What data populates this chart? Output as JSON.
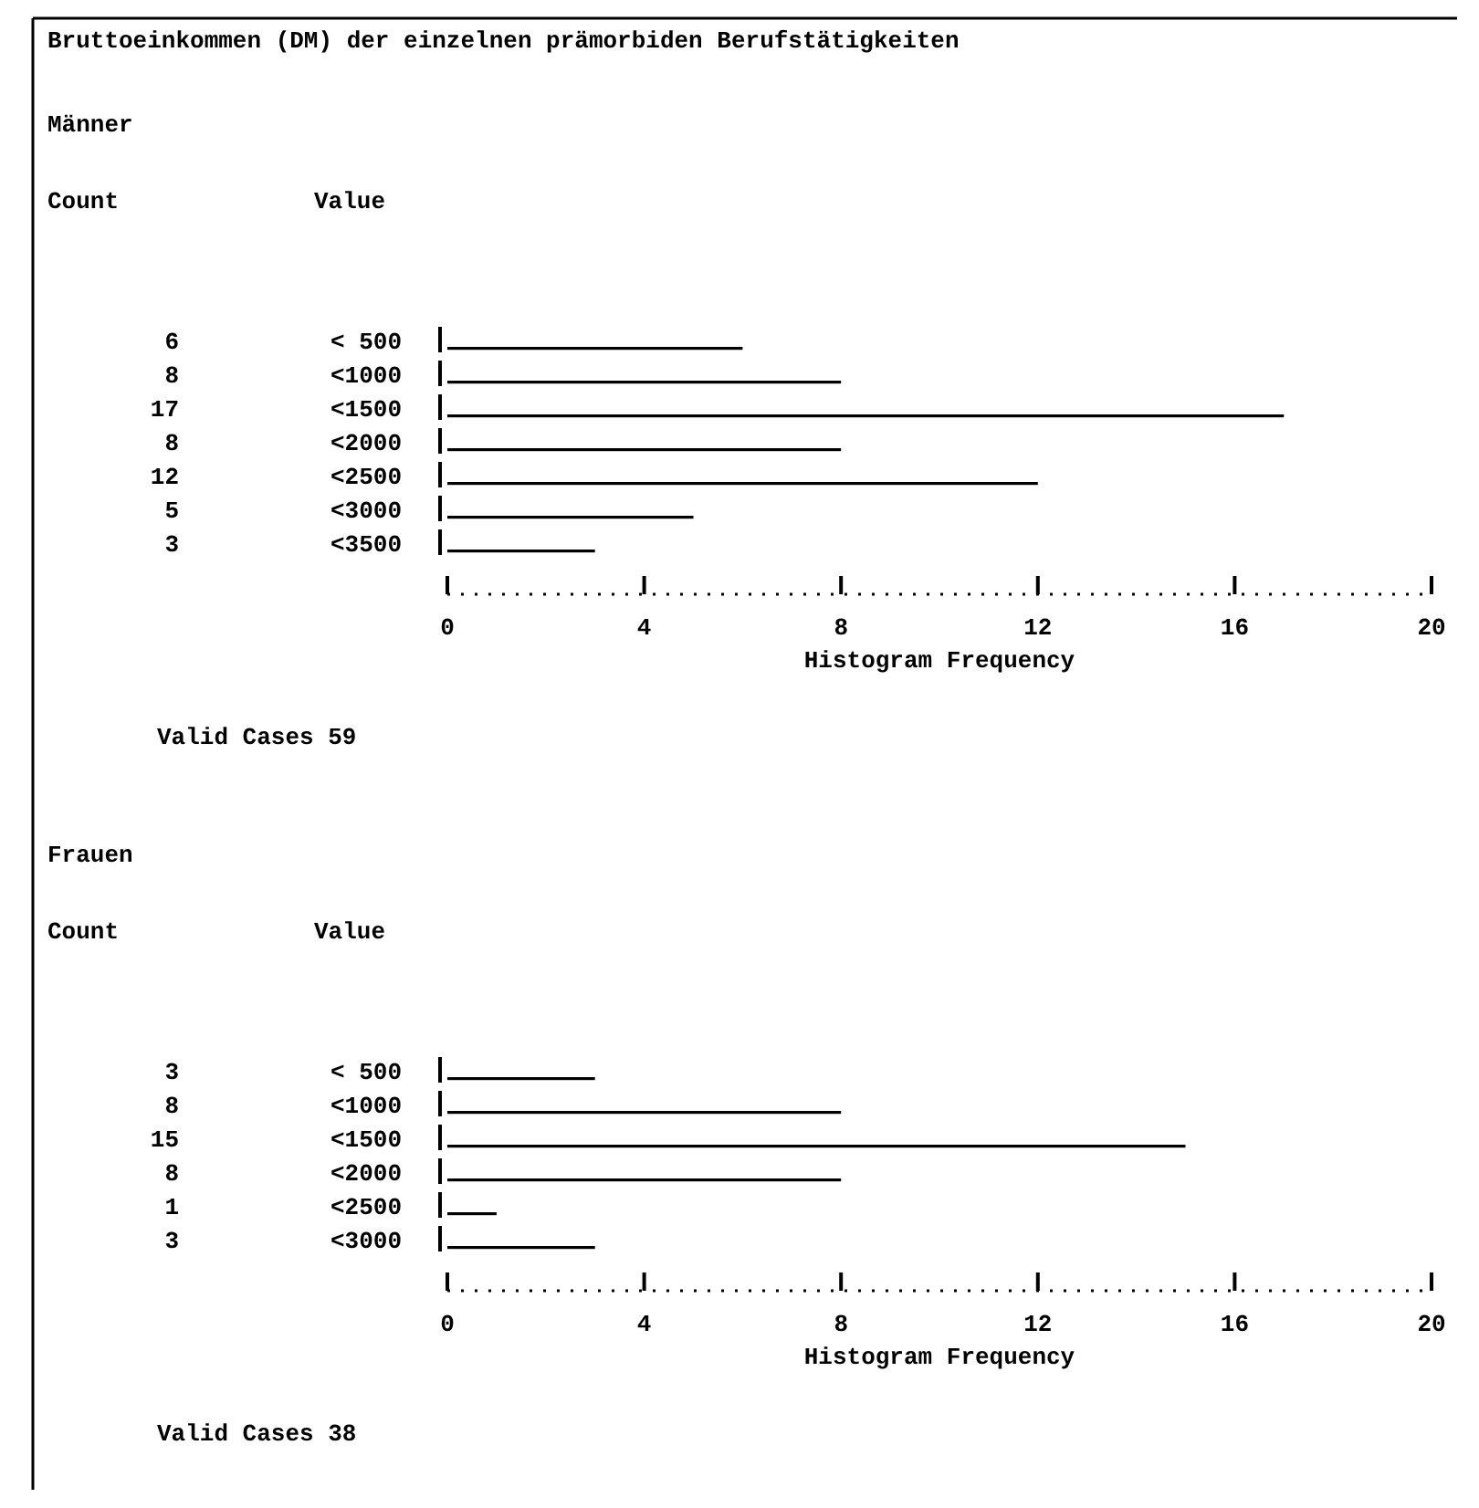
{
  "chart_data": [
    {
      "type": "bar",
      "orientation": "horizontal",
      "title": "Bruttoeinkommen (DM) der einzelnen prämorbiden Berufstätigkeiten",
      "ylabel": "Value",
      "xlabel": "Histogram Frequency",
      "categories": [
        "< 500",
        "<1000",
        "<1500",
        "<2000",
        "<2500",
        "<3000",
        "<3500"
      ],
      "values": [
        6,
        8,
        17,
        8,
        12,
        5,
        3
      ],
      "color": "#000000",
      "xlim": [
        0,
        20
      ],
      "xticks": [
        0,
        4,
        8,
        12,
        16,
        20
      ],
      "data_labels": true,
      "grid": false,
      "annotations": [
        "Männer",
        "Count",
        "Valid Cases  59"
      ]
    },
    {
      "type": "bar",
      "orientation": "horizontal",
      "ylabel": "Value",
      "xlabel": "Histogram Frequency",
      "categories": [
        "< 500",
        "<1000",
        "<1500",
        "<2000",
        "<2500",
        "<3000"
      ],
      "values": [
        3,
        8,
        15,
        8,
        1,
        3
      ],
      "color": "#000000",
      "xlim": [
        0,
        20
      ],
      "xticks": [
        0,
        4,
        8,
        12,
        16,
        20
      ],
      "data_labels": true,
      "grid": false,
      "annotations": [
        "Frauen",
        "Count",
        "Valid Cases  38"
      ]
    }
  ]
}
